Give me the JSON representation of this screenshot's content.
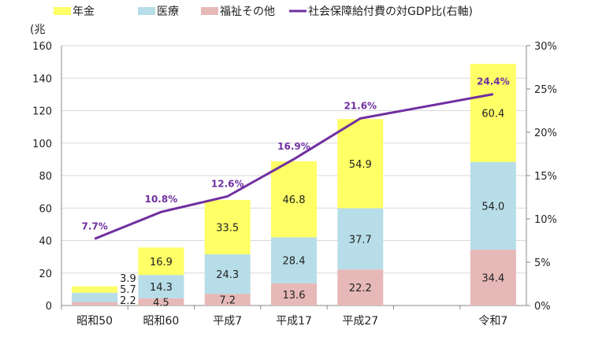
{
  "chart_data": {
    "type": "bar",
    "stacked": true,
    "unit_label": "(兆",
    "categories": [
      "昭和50",
      "昭和60",
      "平成7",
      "平成17",
      "平成27",
      "",
      "令和7"
    ],
    "series": [
      {
        "name": "福祉その他",
        "color": "#e6b9b8",
        "values": [
          2.2,
          4.5,
          7.2,
          13.6,
          22.2,
          null,
          34.4
        ]
      },
      {
        "name": "医療",
        "color": "#b7dde8",
        "values": [
          5.7,
          14.3,
          24.3,
          28.4,
          37.7,
          null,
          54.0
        ]
      },
      {
        "name": "年金",
        "color": "#ffff66",
        "values": [
          3.9,
          16.9,
          33.5,
          46.8,
          54.9,
          null,
          60.4
        ]
      }
    ],
    "line_series": {
      "name": "社会保障給付費の対GDP比(右軸)",
      "color": "#7030a0",
      "values": [
        7.7,
        10.8,
        12.6,
        16.9,
        21.6,
        null,
        24.4
      ],
      "labels": [
        "7.7%",
        "10.8%",
        "12.6%",
        "16.9%",
        "21.6%",
        "",
        "24.4%"
      ]
    },
    "legend_order": [
      "年金",
      "医療",
      "福祉その他",
      "社会保障給付費の対GDP比(右軸)"
    ],
    "legend_placement": "top",
    "ylim": [
      0,
      160
    ],
    "yticks": [
      "0",
      "20",
      "40",
      "60",
      "80",
      "100",
      "120",
      "140",
      "160"
    ],
    "y2lim": [
      0,
      30
    ],
    "y2ticks": [
      "0%",
      "5%",
      "10%",
      "15%",
      "20%",
      "25%",
      "30%"
    ],
    "grid": true
  }
}
